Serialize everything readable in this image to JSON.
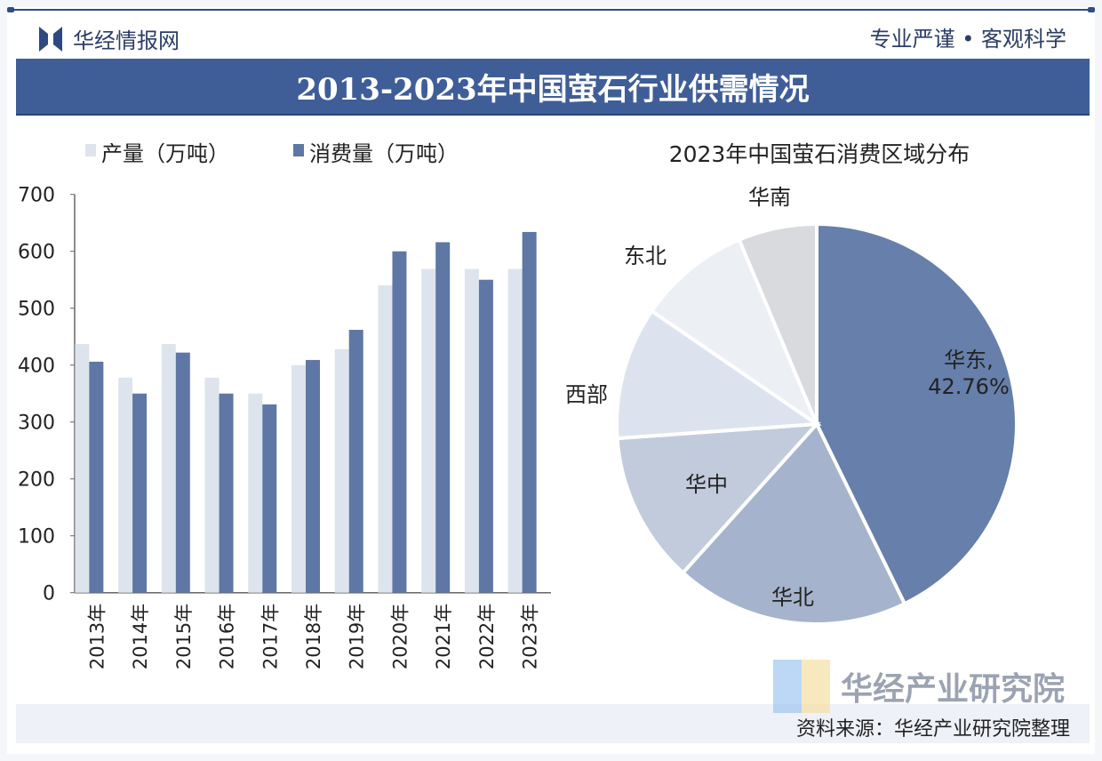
{
  "header": {
    "brand": "华经情报网",
    "slogan": "专业严谨 • 客观科学",
    "title": "2013-2023年中国萤石行业供需情况"
  },
  "footer": {
    "source": "资料来源：华经产业研究院整理",
    "watermark": "华经产业研究院"
  },
  "colors": {
    "production": "#dde4ee",
    "consumption": "#5e77a5",
    "title_bar": "#3f5e98"
  },
  "chart_data": [
    {
      "type": "bar",
      "categories": [
        "2013年",
        "2014年",
        "2015年",
        "2016年",
        "2017年",
        "2018年",
        "2019年",
        "2020年",
        "2021年",
        "2022年",
        "2023年"
      ],
      "series": [
        {
          "name": "产量（万吨）",
          "values": [
            437,
            378,
            437,
            378,
            350,
            400,
            428,
            540,
            569,
            569,
            569
          ]
        },
        {
          "name": "消费量（万吨）",
          "values": [
            406,
            350,
            422,
            350,
            331,
            409,
            462,
            600,
            616,
            550,
            634
          ]
        }
      ],
      "ylim": [
        0,
        700
      ],
      "yticks": [
        0,
        100,
        200,
        300,
        400,
        500,
        600,
        700
      ],
      "legend": "top-left",
      "grid": false
    },
    {
      "type": "pie",
      "title": "2023年中国萤石消费区域分布",
      "labels": [
        "华东",
        "华北",
        "华中",
        "西部",
        "东北",
        "华南"
      ],
      "values": [
        42.76,
        18.9,
        12.2,
        10.7,
        9.1,
        6.34
      ],
      "data_labels": [
        "华东,\n42.76%",
        "华北",
        "华中",
        "西部",
        "东北",
        "华南"
      ],
      "colors": [
        "#667fab",
        "#a5b3cc",
        "#c2cbdc",
        "#dde3ee",
        "#eceff4",
        "#d8dade"
      ]
    }
  ]
}
